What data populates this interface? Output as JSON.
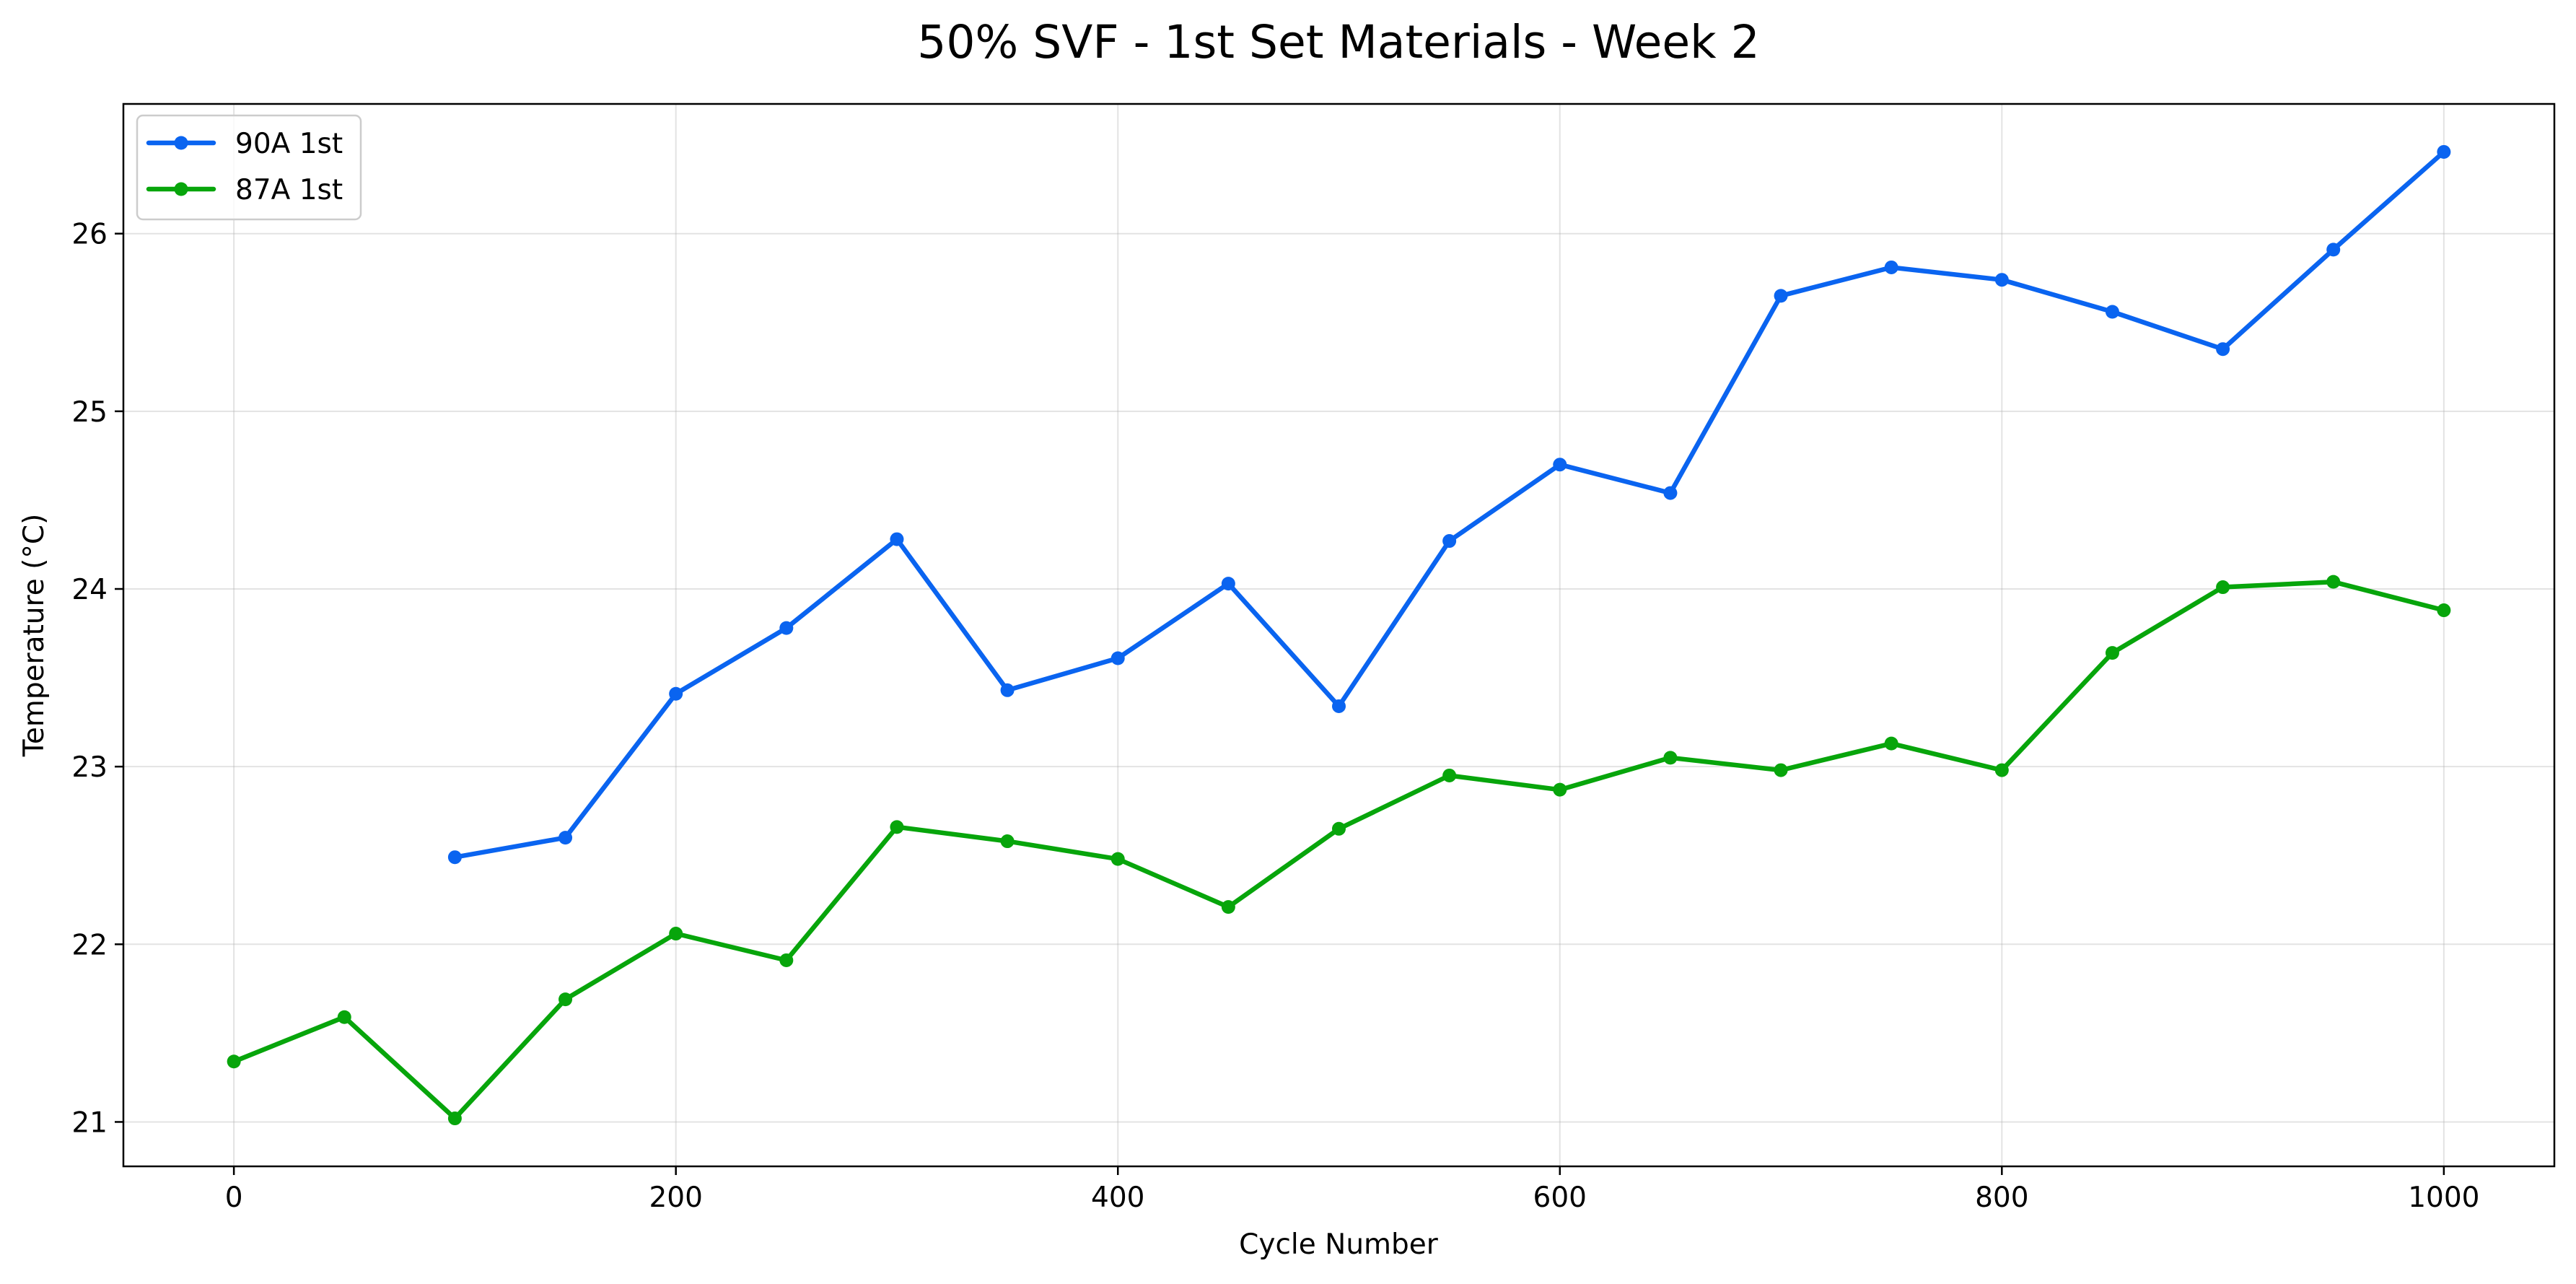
{
  "chart_data": {
    "type": "line",
    "title": "50% SVF - 1st Set Materials - Week 2",
    "xlabel": "Cycle Number",
    "ylabel": "Temperature (°C)",
    "xlim": [
      -50,
      1050
    ],
    "ylim": [
      20.75,
      26.73
    ],
    "x_ticks": [
      0,
      200,
      400,
      600,
      800,
      1000
    ],
    "y_ticks": [
      21,
      22,
      23,
      24,
      25,
      26
    ],
    "grid": true,
    "legend_position": "top-left",
    "series": [
      {
        "name": "90A 1st",
        "color": "#0a64f0",
        "x": [
          100,
          150,
          200,
          250,
          300,
          350,
          400,
          450,
          500,
          550,
          600,
          650,
          700,
          750,
          800,
          850,
          900,
          950,
          1000
        ],
        "y": [
          22.49,
          22.6,
          23.41,
          23.78,
          24.28,
          23.43,
          23.61,
          24.03,
          23.34,
          24.27,
          24.7,
          24.54,
          25.65,
          25.81,
          25.74,
          25.56,
          25.35,
          25.91,
          26.46
        ]
      },
      {
        "name": "87A 1st",
        "color": "#07a50b",
        "x": [
          0,
          50,
          100,
          150,
          200,
          250,
          300,
          350,
          400,
          450,
          500,
          550,
          600,
          650,
          700,
          750,
          800,
          850,
          900,
          950,
          1000
        ],
        "y": [
          21.34,
          21.59,
          21.02,
          21.69,
          22.06,
          21.91,
          22.66,
          22.58,
          22.48,
          22.21,
          22.65,
          22.95,
          22.87,
          23.05,
          22.98,
          23.13,
          22.98,
          23.64,
          24.01,
          24.04,
          23.88
        ]
      }
    ]
  }
}
